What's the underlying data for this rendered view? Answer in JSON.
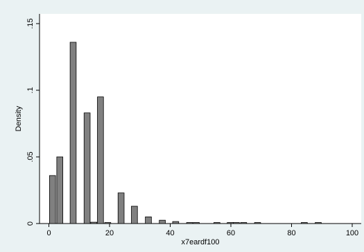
{
  "chart_data": {
    "type": "bar",
    "title": "",
    "xlabel": "x7eardf100",
    "ylabel": "Density",
    "xlim": [
      0,
      100
    ],
    "ylim": [
      0,
      0.15
    ],
    "x_ticks": [
      0,
      20,
      40,
      60,
      80,
      100
    ],
    "x_tick_labels": [
      "0",
      "20",
      "40",
      "60",
      "80",
      "100"
    ],
    "y_ticks": [
      0,
      0.05,
      0.1,
      0.15
    ],
    "y_tick_labels": [
      "0",
      ".05",
      ".1",
      ".15"
    ],
    "bin_width": 2,
    "bins": [
      {
        "x": 1.2,
        "value": 0.036
      },
      {
        "x": 3.6,
        "value": 0.05
      },
      {
        "x": 8.0,
        "value": 0.136
      },
      {
        "x": 12.6,
        "value": 0.083
      },
      {
        "x": 14.8,
        "value": 0.001
      },
      {
        "x": 17.0,
        "value": 0.095
      },
      {
        "x": 19.4,
        "value": 0.0005
      },
      {
        "x": 23.8,
        "value": 0.023
      },
      {
        "x": 28.2,
        "value": 0.013
      },
      {
        "x": 32.8,
        "value": 0.005
      },
      {
        "x": 37.4,
        "value": 0.0025
      },
      {
        "x": 41.8,
        "value": 0.0015
      },
      {
        "x": 46.4,
        "value": 0.0003
      },
      {
        "x": 48.6,
        "value": 0.0003
      },
      {
        "x": 55.4,
        "value": 0.0003
      },
      {
        "x": 59.8,
        "value": 0.0003
      },
      {
        "x": 61.8,
        "value": 0.0003
      },
      {
        "x": 64.2,
        "value": 0.0003
      },
      {
        "x": 68.8,
        "value": 0.0003
      },
      {
        "x": 84.2,
        "value": 0.0003
      },
      {
        "x": 88.8,
        "value": 0.0003
      }
    ],
    "grid": false,
    "legend": "none",
    "colors": {
      "background": "#eaf2f3",
      "plot_area": "#ffffff",
      "bar_fill": "#808080",
      "bar_stroke": "#000000"
    }
  }
}
